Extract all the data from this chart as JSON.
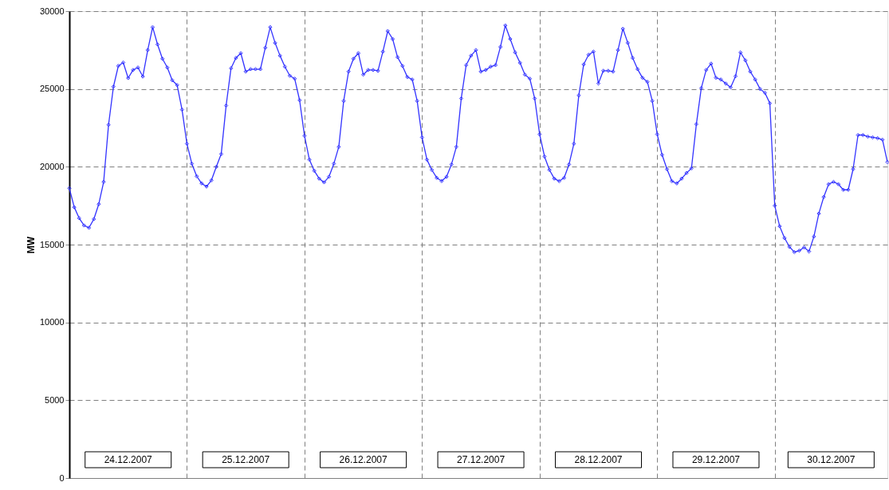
{
  "chart_data": {
    "type": "line",
    "ylabel": "MW",
    "categories": [
      null,
      null,
      null,
      null,
      null,
      null,
      null,
      null,
      null,
      null,
      null,
      null,
      null,
      null,
      null,
      null,
      null,
      null,
      null,
      null,
      null,
      null,
      null,
      null,
      null,
      null,
      null,
      null,
      null,
      null,
      null,
      null,
      null,
      null,
      null,
      null,
      null,
      null,
      null,
      null,
      null,
      null,
      null,
      null,
      null,
      null,
      null,
      null,
      null,
      null,
      null,
      null,
      null,
      null,
      null,
      null,
      null,
      null,
      null,
      null,
      null,
      null,
      null,
      null,
      null,
      null,
      null,
      null,
      null,
      null,
      null,
      null,
      null,
      null,
      null,
      null,
      null,
      null,
      null,
      null,
      null,
      null,
      null,
      null,
      null,
      null,
      null,
      null,
      null,
      null,
      null,
      null,
      null,
      null,
      null,
      null,
      null,
      null,
      null,
      null,
      null,
      null,
      null,
      null,
      null,
      null,
      null,
      null,
      null,
      null,
      null,
      null,
      null,
      null,
      null,
      null,
      null,
      null,
      null,
      null,
      null,
      null,
      null,
      null,
      null,
      null,
      null,
      null,
      null,
      null,
      null,
      null,
      null,
      null,
      null,
      null,
      null,
      null,
      null,
      null,
      null,
      null,
      null,
      null,
      null,
      null,
      null,
      null,
      null,
      null,
      null,
      null,
      null,
      null,
      null,
      null,
      null,
      null,
      null,
      null,
      null,
      null,
      null,
      null,
      null,
      null,
      null,
      null
    ],
    "series": [
      {
        "color": "#3333ff",
        "values": [
          18620,
          17400,
          16700,
          16230,
          16080,
          16640,
          17600,
          19030,
          22700,
          25150,
          26480,
          26700,
          25700,
          26220,
          26380,
          25800,
          27500,
          28970,
          27860,
          26940,
          26380,
          25560,
          25250,
          23670,
          21480,
          20200,
          19390,
          18930,
          18730,
          19130,
          20000,
          20820,
          23930,
          26330,
          26990,
          27300,
          26120,
          26270,
          26270,
          26270,
          27650,
          28970,
          27960,
          27140,
          26430,
          25850,
          25660,
          24280,
          21990,
          20460,
          19740,
          19240,
          19000,
          19360,
          20200,
          21280,
          24230,
          26120,
          26940,
          27300,
          25920,
          26220,
          26220,
          26170,
          27400,
          28720,
          28210,
          27040,
          26480,
          25770,
          25610,
          24230,
          21890,
          20460,
          19800,
          19290,
          19080,
          19360,
          20150,
          21280,
          24390,
          26530,
          27140,
          27500,
          26120,
          26220,
          26430,
          26530,
          27700,
          29080,
          28210,
          27350,
          26680,
          25920,
          25660,
          24390,
          22090,
          20660,
          19800,
          19240,
          19080,
          19290,
          20150,
          21480,
          24590,
          26580,
          27200,
          27400,
          25350,
          26170,
          26170,
          26120,
          27500,
          28870,
          27960,
          26990,
          26270,
          25720,
          25460,
          24230,
          22090,
          20770,
          19850,
          19080,
          18930,
          19240,
          19600,
          19900,
          22740,
          25050,
          26220,
          26630,
          25720,
          25610,
          25350,
          25100,
          25820,
          27350,
          26840,
          26120,
          25610,
          25000,
          24750,
          24080,
          17500,
          16180,
          15420,
          14860,
          14520,
          14610,
          14820,
          14560,
          15520,
          16990,
          18060,
          18880,
          19030,
          18880,
          18520,
          18520,
          19850,
          22040,
          22040,
          21940,
          21890,
          21840,
          21740,
          20300
        ]
      }
    ],
    "ylim": [
      0,
      30000
    ],
    "yticks": [
      0,
      5000,
      10000,
      15000,
      20000,
      25000,
      30000
    ],
    "grid": true,
    "marker": "diamond",
    "line_style": "solid",
    "annotations": [
      "24.12.2007",
      "25.12.2007",
      "26.12.2007",
      "27.12.2007",
      "28.12.2007",
      "29.12.2007",
      "30.12.2007"
    ]
  }
}
